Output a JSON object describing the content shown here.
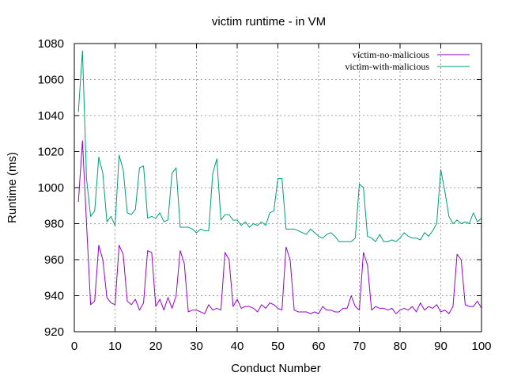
{
  "chart_data": {
    "type": "line",
    "title": "victim runtime - in VM",
    "xlabel": "Conduct Number",
    "ylabel": "Runtime (ms)",
    "xlim": [
      0,
      100
    ],
    "ylim": [
      920,
      1080
    ],
    "x_ticks": [
      0,
      10,
      20,
      30,
      40,
      50,
      60,
      70,
      80,
      90,
      100
    ],
    "y_ticks": [
      920,
      940,
      960,
      980,
      1000,
      1020,
      1040,
      1060,
      1080
    ],
    "grid": true,
    "legend_position": "top-right",
    "x": [
      1,
      2,
      3,
      4,
      5,
      6,
      7,
      8,
      9,
      10,
      11,
      12,
      13,
      14,
      15,
      16,
      17,
      18,
      19,
      20,
      21,
      22,
      23,
      24,
      25,
      26,
      27,
      28,
      29,
      30,
      31,
      32,
      33,
      34,
      35,
      36,
      37,
      38,
      39,
      40,
      41,
      42,
      43,
      44,
      45,
      46,
      47,
      48,
      49,
      50,
      51,
      52,
      53,
      54,
      55,
      56,
      57,
      58,
      59,
      60,
      61,
      62,
      63,
      64,
      65,
      66,
      67,
      68,
      69,
      70,
      71,
      72,
      73,
      74,
      75,
      76,
      77,
      78,
      79,
      80,
      81,
      82,
      83,
      84,
      85,
      86,
      87,
      88,
      89,
      90,
      91,
      92,
      93,
      94,
      95,
      96,
      97,
      98,
      99,
      100
    ],
    "series": [
      {
        "name": "victim-no-malicious",
        "color": "#9400d3",
        "values": [
          992,
          1026,
          980,
          935,
          937,
          968,
          960,
          939,
          936,
          935,
          968,
          963,
          937,
          935,
          938,
          932,
          936,
          965,
          964,
          934,
          938,
          932,
          939,
          933,
          940,
          965,
          958,
          931,
          932,
          932,
          931,
          930,
          935,
          932,
          933,
          932,
          964,
          960,
          934,
          938,
          933,
          934,
          934,
          933,
          931,
          935,
          933,
          936,
          935,
          933,
          932,
          967,
          960,
          932,
          931,
          931,
          931,
          930,
          931,
          930,
          934,
          932,
          932,
          931,
          931,
          933,
          933,
          940,
          934,
          932,
          964,
          957,
          932,
          934,
          933,
          933,
          932,
          933,
          930,
          932,
          933,
          932,
          934,
          931,
          936,
          932,
          934,
          933,
          935,
          931,
          932,
          930,
          934,
          963,
          960,
          935,
          934,
          934,
          937,
          933
        ]
      },
      {
        "name": "victim-with-malicious",
        "color": "#009e73",
        "values": [
          1042,
          1076,
          1005,
          984,
          987,
          1017,
          1008,
          981,
          984,
          979,
          1018,
          1010,
          986,
          985,
          988,
          1011,
          1012,
          983,
          984,
          983,
          986,
          981,
          982,
          1008,
          1011,
          978,
          978,
          978,
          977,
          975,
          977,
          976,
          976,
          1008,
          1016,
          982,
          985,
          985,
          982,
          982,
          979,
          981,
          978,
          980,
          979,
          981,
          979,
          986,
          987,
          1005,
          1005,
          977,
          977,
          977,
          976,
          975,
          974,
          977,
          975,
          973,
          972,
          974,
          975,
          973,
          970,
          970,
          970,
          970,
          972,
          1002,
          1000,
          973,
          972,
          970,
          974,
          970,
          970,
          971,
          970,
          972,
          975,
          973,
          972,
          972,
          971,
          975,
          973,
          976,
          980,
          1010,
          998,
          984,
          980,
          982,
          980,
          981,
          980,
          986,
          981,
          983
        ]
      }
    ]
  }
}
